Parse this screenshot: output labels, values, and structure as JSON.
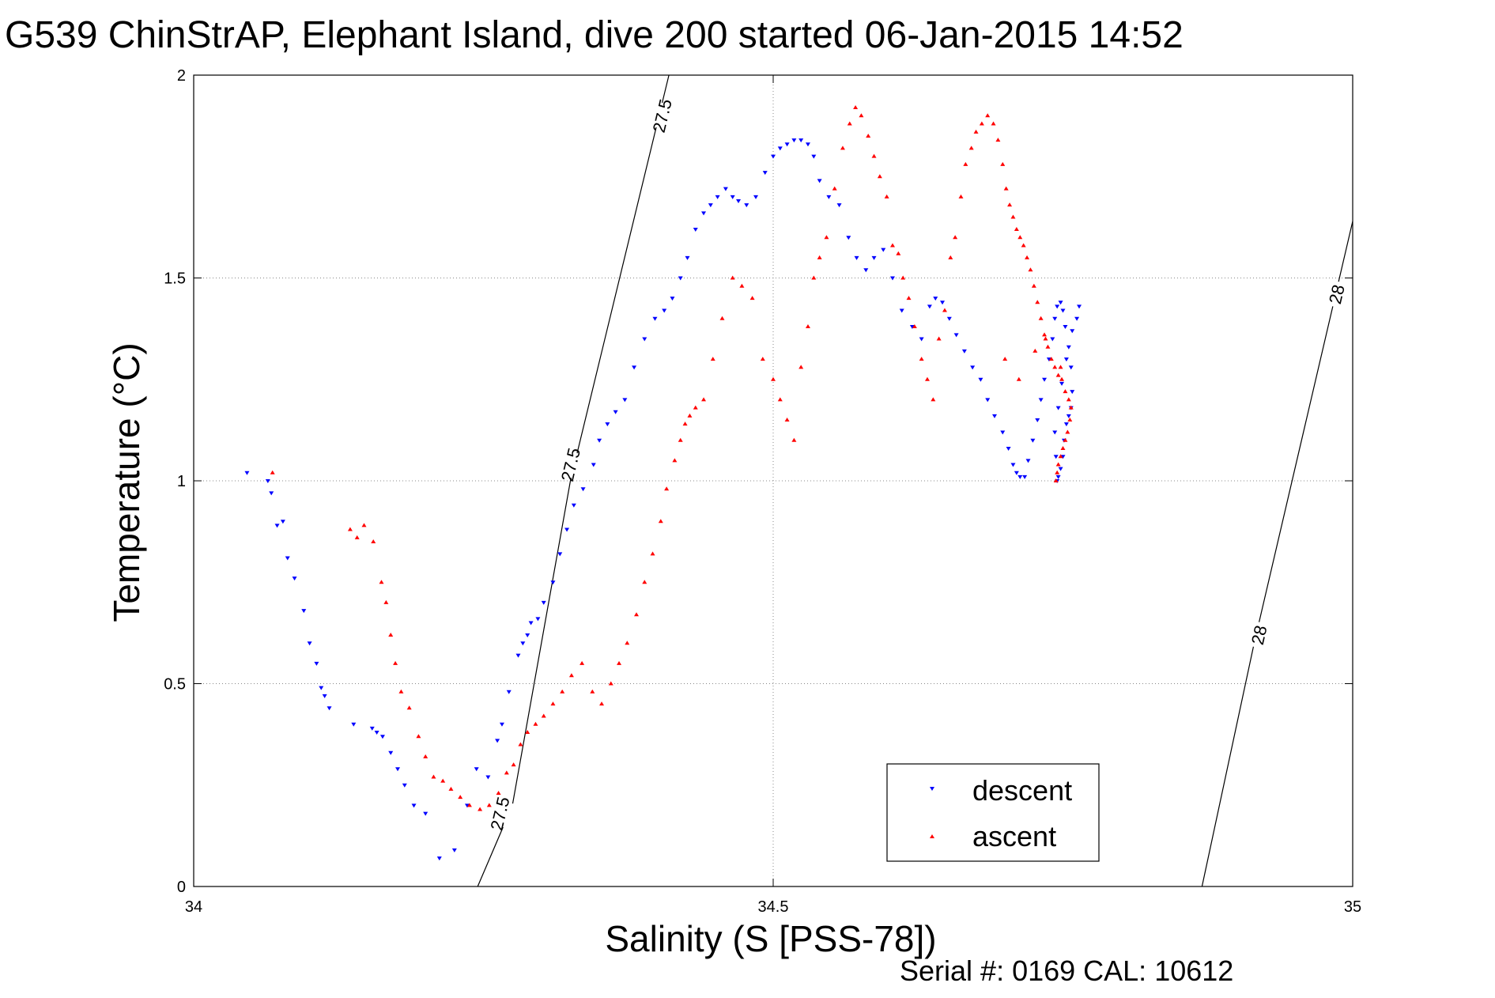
{
  "chart_data": {
    "type": "scatter",
    "title": "G539 ChinStrAP, Elephant Island, dive 200 started 06-Jan-2015 14:52",
    "xlabel": "Salinity (S [PSS-78])",
    "ylabel": "Temperature (°C)",
    "xlim": [
      34,
      35
    ],
    "ylim": [
      0,
      2
    ],
    "xticks": [
      34,
      34.5,
      35
    ],
    "yticks": [
      0,
      0.5,
      1,
      1.5,
      2
    ],
    "xtick_labels": [
      "34",
      "34.5",
      "35"
    ],
    "ytick_labels": [
      "0",
      "0.5",
      "1",
      "1.5",
      "2"
    ],
    "grid": true,
    "legend_position": "bottom-right",
    "footer": "Serial #: 0169 CAL: 10612",
    "density_contours": [
      {
        "label": "27.5",
        "points": [
          [
            34.245,
            0
          ],
          [
            34.275,
            0.2
          ],
          [
            34.325,
            1
          ],
          [
            34.41,
            2
          ]
        ],
        "label_positions": [
          [
            34.264,
            0.18
          ],
          [
            34.325,
            1.04
          ],
          [
            34.404,
            1.9
          ]
        ]
      },
      {
        "label": "28",
        "points": [
          [
            34.87,
            0
          ],
          [
            34.915,
            0.6
          ],
          [
            35,
            1.64
          ]
        ],
        "label_positions": [
          [
            34.919,
            0.62
          ],
          [
            34.986,
            1.46
          ]
        ]
      }
    ],
    "series": [
      {
        "name": "descent",
        "color": "#0000ff",
        "marker": "triangle-down",
        "x": [
          34.046,
          34.064,
          34.067,
          34.072,
          34.077,
          34.081,
          34.087,
          34.095,
          34.1,
          34.106,
          34.11,
          34.113,
          34.117,
          34.138,
          34.154,
          34.158,
          34.163,
          34.17,
          34.176,
          34.182,
          34.19,
          34.2,
          34.212,
          34.225,
          34.236,
          34.244,
          34.254,
          34.262,
          34.266,
          34.272,
          34.28,
          34.284,
          34.288,
          34.291,
          34.297,
          34.302,
          34.31,
          34.316,
          34.322,
          34.328,
          34.336,
          34.345,
          34.35,
          34.357,
          34.364,
          34.372,
          34.38,
          34.389,
          34.398,
          34.406,
          34.413,
          34.42,
          34.426,
          34.433,
          34.44,
          34.446,
          34.452,
          34.459,
          34.465,
          34.47,
          34.477,
          34.485,
          34.493,
          34.5,
          34.506,
          34.512,
          34.518,
          34.524,
          34.53,
          34.535,
          34.54,
          34.548,
          34.557,
          34.565,
          34.572,
          34.58,
          34.587,
          34.595,
          34.603,
          34.611,
          34.62,
          34.628,
          34.635,
          34.64,
          34.646,
          34.652,
          34.658,
          34.665,
          34.672,
          34.679,
          34.685,
          34.691,
          34.698,
          34.703,
          34.707,
          34.71,
          34.713,
          34.717,
          34.72,
          34.724,
          34.728,
          34.731,
          34.734,
          34.738,
          34.741,
          34.743,
          34.745,
          34.748,
          34.75,
          34.752,
          34.755,
          34.757,
          34.758,
          34.757,
          34.755,
          34.753,
          34.751,
          34.75,
          34.748,
          34.746,
          34.745,
          34.744,
          34.743,
          34.746,
          34.749,
          34.753,
          34.758,
          34.762,
          34.764
        ],
        "y": [
          1.02,
          1.0,
          0.97,
          0.89,
          0.9,
          0.81,
          0.76,
          0.68,
          0.6,
          0.55,
          0.49,
          0.47,
          0.44,
          0.4,
          0.39,
          0.38,
          0.37,
          0.33,
          0.29,
          0.25,
          0.2,
          0.18,
          0.07,
          0.09,
          0.2,
          0.29,
          0.27,
          0.36,
          0.4,
          0.48,
          0.57,
          0.6,
          0.62,
          0.65,
          0.66,
          0.7,
          0.75,
          0.82,
          0.88,
          0.94,
          0.98,
          1.04,
          1.1,
          1.14,
          1.17,
          1.2,
          1.28,
          1.35,
          1.4,
          1.42,
          1.45,
          1.5,
          1.55,
          1.62,
          1.66,
          1.68,
          1.7,
          1.72,
          1.7,
          1.69,
          1.68,
          1.7,
          1.76,
          1.8,
          1.82,
          1.83,
          1.84,
          1.84,
          1.83,
          1.8,
          1.74,
          1.7,
          1.68,
          1.6,
          1.55,
          1.52,
          1.55,
          1.57,
          1.5,
          1.42,
          1.38,
          1.35,
          1.43,
          1.45,
          1.44,
          1.4,
          1.36,
          1.32,
          1.28,
          1.25,
          1.2,
          1.16,
          1.12,
          1.08,
          1.04,
          1.02,
          1.01,
          1.01,
          1.05,
          1.1,
          1.15,
          1.2,
          1.25,
          1.3,
          1.35,
          1.4,
          1.43,
          1.44,
          1.42,
          1.38,
          1.33,
          1.28,
          1.22,
          1.18,
          1.16,
          1.14,
          1.1,
          1.06,
          1.03,
          1.01,
          1.0,
          1.06,
          1.12,
          1.18,
          1.24,
          1.3,
          1.37,
          1.4,
          1.43
        ]
      },
      {
        "name": "ascent",
        "color": "#ff0000",
        "marker": "triangle-up",
        "x": [
          34.068,
          34.135,
          34.141,
          34.147,
          34.155,
          34.162,
          34.166,
          34.17,
          34.174,
          34.179,
          34.186,
          34.194,
          34.2,
          34.207,
          34.215,
          34.222,
          34.23,
          34.238,
          34.247,
          34.255,
          34.263,
          34.27,
          34.276,
          34.282,
          34.288,
          34.295,
          34.302,
          34.31,
          34.318,
          34.326,
          34.335,
          34.344,
          34.352,
          34.36,
          34.367,
          34.374,
          34.382,
          34.389,
          34.396,
          34.403,
          34.408,
          34.415,
          34.42,
          34.424,
          34.428,
          34.433,
          34.44,
          34.448,
          34.456,
          34.465,
          34.473,
          34.482,
          34.491,
          34.5,
          34.506,
          34.512,
          34.518,
          34.524,
          34.53,
          34.535,
          34.54,
          34.546,
          34.553,
          34.56,
          34.566,
          34.571,
          34.576,
          34.582,
          34.587,
          34.592,
          34.598,
          34.603,
          34.608,
          34.612,
          34.617,
          34.622,
          34.628,
          34.633,
          34.638,
          34.643,
          34.648,
          34.653,
          34.657,
          34.662,
          34.666,
          34.671,
          34.675,
          34.68,
          34.685,
          34.69,
          34.694,
          34.698,
          34.701,
          34.704,
          34.707,
          34.71,
          34.713,
          34.716,
          34.719,
          34.722,
          34.725,
          34.728,
          34.731,
          34.734,
          34.737,
          34.74,
          34.743,
          34.746,
          34.749,
          34.752,
          34.755,
          34.757,
          34.756,
          34.754,
          34.752,
          34.75,
          34.748,
          34.746,
          34.745,
          34.744,
          34.7,
          34.712,
          34.726,
          34.735,
          34.748
        ],
        "y": [
          1.02,
          0.88,
          0.86,
          0.89,
          0.85,
          0.75,
          0.7,
          0.62,
          0.55,
          0.48,
          0.44,
          0.37,
          0.32,
          0.27,
          0.26,
          0.24,
          0.22,
          0.2,
          0.19,
          0.2,
          0.23,
          0.28,
          0.3,
          0.35,
          0.38,
          0.4,
          0.42,
          0.45,
          0.48,
          0.52,
          0.55,
          0.48,
          0.45,
          0.5,
          0.55,
          0.6,
          0.67,
          0.75,
          0.82,
          0.9,
          0.98,
          1.05,
          1.1,
          1.14,
          1.16,
          1.18,
          1.2,
          1.3,
          1.4,
          1.5,
          1.48,
          1.45,
          1.3,
          1.25,
          1.2,
          1.15,
          1.1,
          1.28,
          1.38,
          1.5,
          1.55,
          1.6,
          1.72,
          1.82,
          1.88,
          1.92,
          1.9,
          1.85,
          1.8,
          1.75,
          1.7,
          1.58,
          1.56,
          1.5,
          1.45,
          1.38,
          1.3,
          1.25,
          1.2,
          1.35,
          1.42,
          1.55,
          1.6,
          1.7,
          1.78,
          1.82,
          1.86,
          1.88,
          1.9,
          1.88,
          1.84,
          1.78,
          1.72,
          1.68,
          1.65,
          1.62,
          1.6,
          1.58,
          1.55,
          1.52,
          1.48,
          1.44,
          1.4,
          1.36,
          1.33,
          1.3,
          1.28,
          1.26,
          1.25,
          1.22,
          1.2,
          1.18,
          1.15,
          1.12,
          1.1,
          1.08,
          1.06,
          1.04,
          1.02,
          1.0,
          1.3,
          1.25,
          1.32,
          1.35,
          1.28
        ]
      }
    ]
  }
}
